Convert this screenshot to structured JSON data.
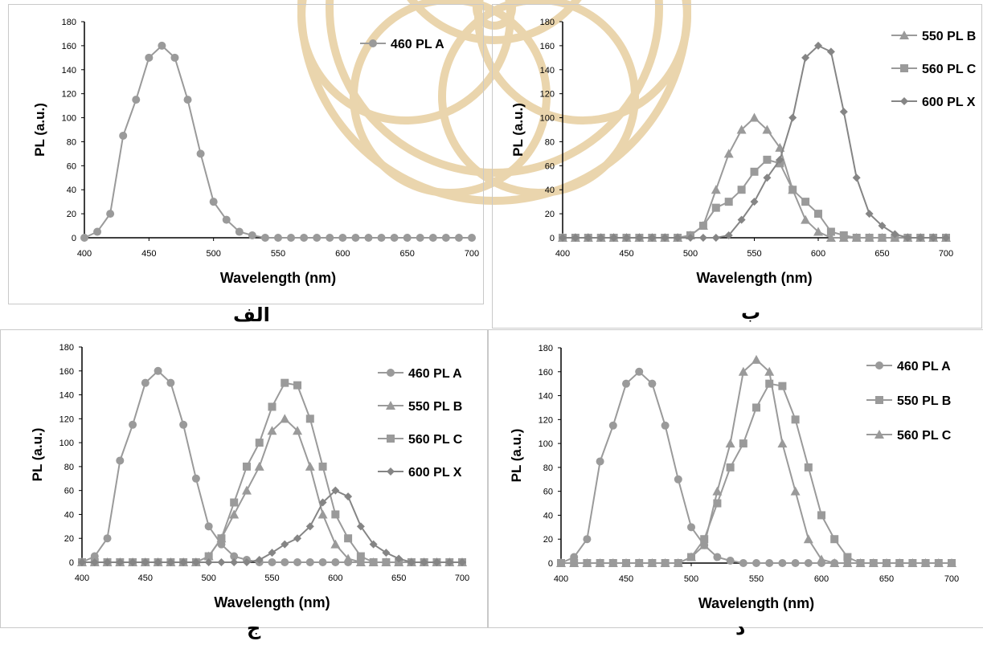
{
  "colors": {
    "series": "#9a9a9a",
    "series_dark": "#858585",
    "axis": "#000000",
    "watermark": "#e3c892"
  },
  "chart_data": [
    {
      "panel": "الف",
      "type": "line",
      "xlabel": "Wavelength (nm)",
      "ylabel": "PL (a.u.)",
      "xlim": [
        400,
        700
      ],
      "ylim": [
        0,
        180
      ],
      "x_ticks": [
        "400",
        "450",
        "500",
        "550",
        "600",
        "650",
        "700"
      ],
      "y_ticks": [
        "0",
        "20",
        "40",
        "60",
        "80",
        "100",
        "120",
        "140",
        "160",
        "180"
      ],
      "legend_position": "top-right",
      "x": [
        400,
        410,
        420,
        430,
        440,
        450,
        460,
        470,
        480,
        490,
        500,
        510,
        520,
        530,
        540,
        550,
        560,
        570,
        580,
        590,
        600,
        610,
        620,
        630,
        640,
        650,
        660,
        670,
        680,
        690,
        700
      ],
      "series": [
        {
          "name": "460 PL A",
          "marker": "circle",
          "values": [
            0,
            5,
            20,
            85,
            115,
            150,
            160,
            150,
            115,
            70,
            30,
            15,
            5,
            2,
            0,
            0,
            0,
            0,
            0,
            0,
            0,
            0,
            0,
            0,
            0,
            0,
            0,
            0,
            0,
            0,
            0
          ]
        }
      ]
    },
    {
      "panel": "ب",
      "type": "line",
      "xlabel": "Wavelength (nm)",
      "ylabel": "PL (a.u.)",
      "xlim": [
        400,
        700
      ],
      "ylim": [
        0,
        180
      ],
      "x_ticks": [
        "400",
        "450",
        "500",
        "550",
        "600",
        "650",
        "700"
      ],
      "y_ticks": [
        "0",
        "20",
        "40",
        "60",
        "80",
        "100",
        "120",
        "140",
        "160",
        "180"
      ],
      "legend_position": "top-right",
      "x": [
        400,
        410,
        420,
        430,
        440,
        450,
        460,
        470,
        480,
        490,
        500,
        510,
        520,
        530,
        540,
        550,
        560,
        570,
        580,
        590,
        600,
        610,
        620,
        630,
        640,
        650,
        660,
        670,
        680,
        690,
        700
      ],
      "series": [
        {
          "name": "550 PL B",
          "marker": "triangle",
          "values": [
            0,
            0,
            0,
            0,
            0,
            0,
            0,
            0,
            0,
            0,
            2,
            10,
            40,
            70,
            90,
            100,
            90,
            75,
            40,
            15,
            5,
            0,
            0,
            0,
            0,
            0,
            0,
            0,
            0,
            0,
            0
          ]
        },
        {
          "name": "560 PL C",
          "marker": "square",
          "values": [
            0,
            0,
            0,
            0,
            0,
            0,
            0,
            0,
            0,
            0,
            2,
            10,
            25,
            30,
            40,
            55,
            65,
            62,
            40,
            30,
            20,
            5,
            2,
            0,
            0,
            0,
            0,
            0,
            0,
            0,
            0
          ]
        },
        {
          "name": "600 PL X",
          "marker": "diamond",
          "values": [
            0,
            0,
            0,
            0,
            0,
            0,
            0,
            0,
            0,
            0,
            0,
            0,
            0,
            2,
            15,
            30,
            50,
            65,
            100,
            150,
            160,
            155,
            105,
            50,
            20,
            10,
            3,
            0,
            0,
            0,
            0
          ]
        }
      ]
    },
    {
      "panel": "ج",
      "type": "line",
      "xlabel": "Wavelength (nm)",
      "ylabel": "PL (a.u.)",
      "xlim": [
        400,
        700
      ],
      "ylim": [
        0,
        180
      ],
      "x_ticks": [
        "400",
        "450",
        "500",
        "550",
        "600",
        "650",
        "700"
      ],
      "y_ticks": [
        "0",
        "20",
        "40",
        "60",
        "80",
        "100",
        "120",
        "140",
        "160",
        "180"
      ],
      "legend_position": "top-right",
      "x": [
        400,
        410,
        420,
        430,
        440,
        450,
        460,
        470,
        480,
        490,
        500,
        510,
        520,
        530,
        540,
        550,
        560,
        570,
        580,
        590,
        600,
        610,
        620,
        630,
        640,
        650,
        660,
        670,
        680,
        690,
        700
      ],
      "series": [
        {
          "name": "460 PL A",
          "marker": "circle",
          "values": [
            0,
            5,
            20,
            85,
            115,
            150,
            160,
            150,
            115,
            70,
            30,
            15,
            5,
            2,
            0,
            0,
            0,
            0,
            0,
            0,
            0,
            0,
            0,
            0,
            0,
            0,
            0,
            0,
            0,
            0,
            0
          ]
        },
        {
          "name": "550 PL B",
          "marker": "triangle",
          "values": [
            0,
            0,
            0,
            0,
            0,
            0,
            0,
            0,
            0,
            0,
            5,
            20,
            40,
            60,
            80,
            110,
            120,
            110,
            80,
            40,
            15,
            3,
            0,
            0,
            0,
            0,
            0,
            0,
            0,
            0,
            0
          ]
        },
        {
          "name": "560 PL C",
          "marker": "square",
          "values": [
            0,
            0,
            0,
            0,
            0,
            0,
            0,
            0,
            0,
            0,
            5,
            20,
            50,
            80,
            100,
            130,
            150,
            148,
            120,
            80,
            40,
            20,
            5,
            0,
            0,
            0,
            0,
            0,
            0,
            0,
            0
          ]
        },
        {
          "name": "600 PL X",
          "marker": "diamond",
          "values": [
            0,
            0,
            0,
            0,
            0,
            0,
            0,
            0,
            0,
            0,
            0,
            0,
            0,
            0,
            2,
            8,
            15,
            20,
            30,
            50,
            60,
            55,
            30,
            15,
            8,
            3,
            0,
            0,
            0,
            0,
            0
          ]
        }
      ]
    },
    {
      "panel": "د",
      "type": "line",
      "xlabel": "Wavelength (nm)",
      "ylabel": "PL (a.u.)",
      "xlim": [
        400,
        700
      ],
      "ylim": [
        0,
        180
      ],
      "x_ticks": [
        "400",
        "450",
        "500",
        "550",
        "600",
        "650",
        "700"
      ],
      "y_ticks": [
        "0",
        "20",
        "40",
        "60",
        "80",
        "100",
        "120",
        "140",
        "160",
        "180"
      ],
      "legend_position": "top-right",
      "x": [
        400,
        410,
        420,
        430,
        440,
        450,
        460,
        470,
        480,
        490,
        500,
        510,
        520,
        530,
        540,
        550,
        560,
        570,
        580,
        590,
        600,
        610,
        620,
        630,
        640,
        650,
        660,
        670,
        680,
        690,
        700
      ],
      "series": [
        {
          "name": "460 PL A",
          "marker": "circle",
          "values": [
            0,
            5,
            20,
            85,
            115,
            150,
            160,
            150,
            115,
            70,
            30,
            15,
            5,
            2,
            0,
            0,
            0,
            0,
            0,
            0,
            0,
            0,
            0,
            0,
            0,
            0,
            0,
            0,
            0,
            0,
            0
          ]
        },
        {
          "name": "550 PL B",
          "marker": "square",
          "values": [
            0,
            0,
            0,
            0,
            0,
            0,
            0,
            0,
            0,
            0,
            5,
            20,
            50,
            80,
            100,
            130,
            150,
            148,
            120,
            80,
            40,
            20,
            5,
            0,
            0,
            0,
            0,
            0,
            0,
            0,
            0
          ]
        },
        {
          "name": "560 PL C",
          "marker": "triangle",
          "values": [
            0,
            0,
            0,
            0,
            0,
            0,
            0,
            0,
            0,
            0,
            5,
            15,
            60,
            100,
            160,
            170,
            160,
            100,
            60,
            20,
            3,
            0,
            0,
            0,
            0,
            0,
            0,
            0,
            0,
            0,
            0
          ]
        }
      ]
    }
  ]
}
